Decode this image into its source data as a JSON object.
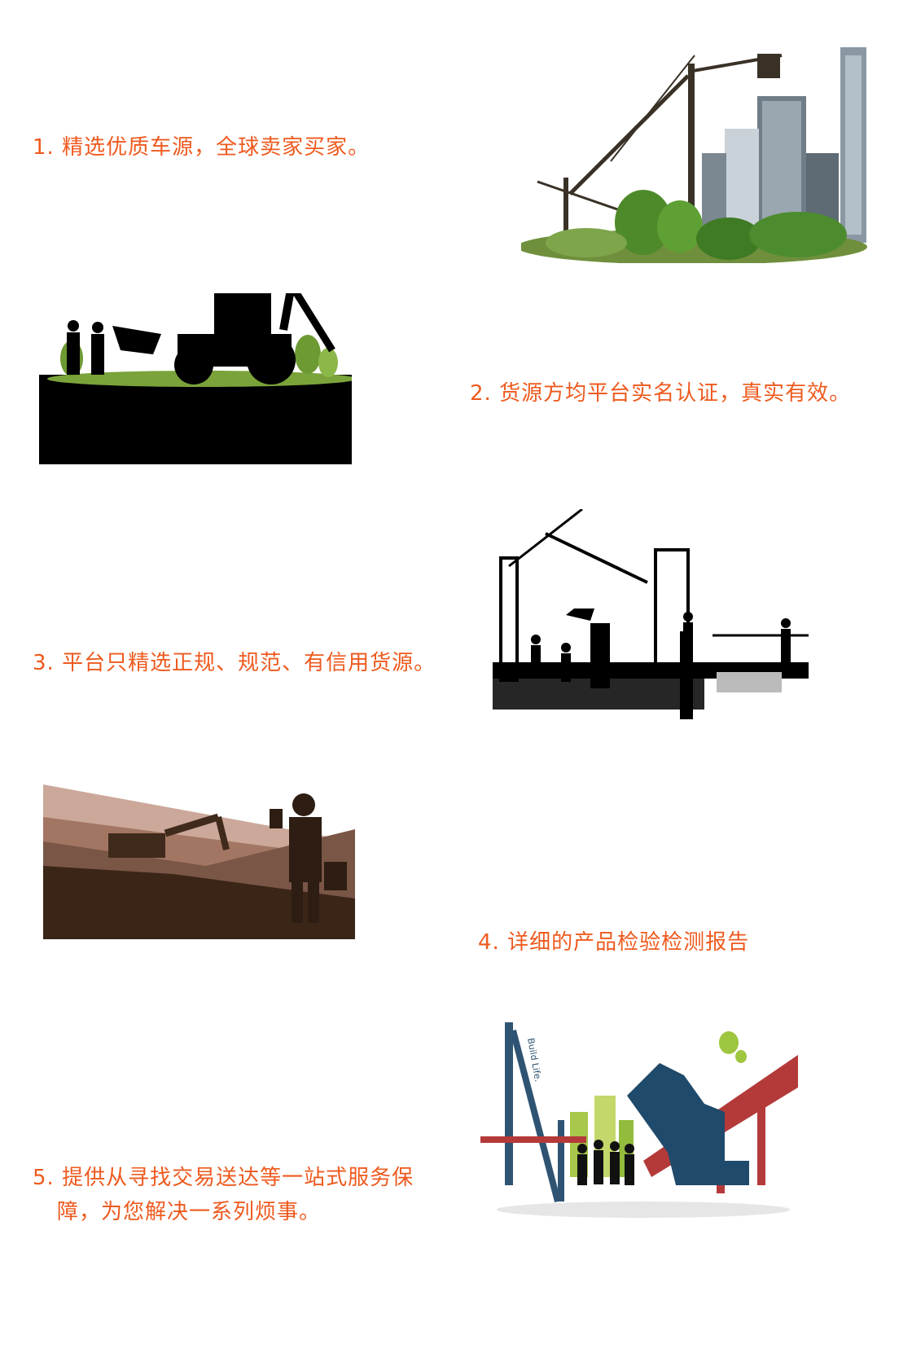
{
  "features": [
    {
      "text": "1. 精选优质车源，全球卖家买家。",
      "image": "city-construction-crane-illustration"
    },
    {
      "text": "2. 货源方均平台实名认证，真实有效。",
      "image": "backhoe-loader-silhouette-illustration"
    },
    {
      "text": "3. 平台只精选正规、规范、有信用货源。",
      "image": "construction-site-workers-silhouette-illustration"
    },
    {
      "text": "4. 详细的产品检验检测报告",
      "image": "excavator-inspector-silhouette-illustration"
    },
    {
      "text_line1": "5. 提供从寻找交易送达等一站式服务保",
      "text_line2": "障，为您解决一系列烦事。",
      "image": "build-life-machinery-illustration",
      "image_text": "Build Life."
    }
  ],
  "colors": {
    "accent_text": "#ee5a1e",
    "background": "#ffffff"
  }
}
